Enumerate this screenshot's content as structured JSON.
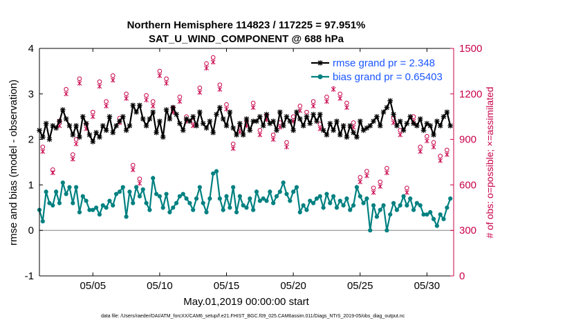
{
  "chart_data": {
    "type": "line",
    "title": [
      "Northern Hemisphere 114823 / 117225 = 97.951%",
      "SAT_U_WIND_COMPONENT @ 688 hPa"
    ],
    "xlabel": "May.01,2019 00:00:00 start",
    "ylabel": "rmse and bias (model - observation)",
    "y2label": "# of obs: o=possible; ×=assimilated",
    "xlim": [
      1,
      32
    ],
    "ylim": [
      -1,
      4
    ],
    "y2lim": [
      0,
      1500
    ],
    "xticks": [
      5,
      10,
      15,
      20,
      25,
      30
    ],
    "xtick_labels": [
      "05/05",
      "05/10",
      "05/15",
      "05/20",
      "05/25",
      "05/30"
    ],
    "yticks": [
      -1,
      0,
      1,
      2,
      3,
      4
    ],
    "ytick_labels": [
      "-1",
      "0",
      "1",
      "2",
      "3",
      "4"
    ],
    "y2ticks": [
      0,
      300,
      600,
      900,
      1200,
      1500
    ],
    "y2tick_labels": [
      "0",
      "300",
      "600",
      "900",
      "1200",
      "1500"
    ],
    "zero_line": 0,
    "legend": [
      "rmse grand pr = 2.348",
      "bias grand pr = 0.65403"
    ],
    "legend_position": "top-right",
    "colors": {
      "rmse": "#000000",
      "bias": "#008080",
      "obs": "#c8004a",
      "zero": "#aaaaaa",
      "legend_text": "#1a56ff"
    },
    "footer": "data file: /Users/raeder/DAI/ATM_forcXX/CAM6_setup/f.e21.FHIST_BGC.f09_025.CAM6assim.011/Diags_NTrS_2019-05/obs_diag_output.nc",
    "series": [
      {
        "name": "rmse",
        "x": [
          1.0,
          1.25,
          1.5,
          1.75,
          2.0,
          2.25,
          2.5,
          2.75,
          3.0,
          3.25,
          3.5,
          3.75,
          4.0,
          4.25,
          4.5,
          4.75,
          5.0,
          5.25,
          5.5,
          5.75,
          6.0,
          6.25,
          6.5,
          6.75,
          7.0,
          7.25,
          7.5,
          7.75,
          8.0,
          8.25,
          8.5,
          8.75,
          9.0,
          9.25,
          9.5,
          9.75,
          10.0,
          10.25,
          10.5,
          10.75,
          11.0,
          11.25,
          11.5,
          11.75,
          12.0,
          12.25,
          12.5,
          12.75,
          13.0,
          13.25,
          13.5,
          13.75,
          14.0,
          14.25,
          14.5,
          14.75,
          15.0,
          15.25,
          15.5,
          15.75,
          16.0,
          16.25,
          16.5,
          16.75,
          17.0,
          17.25,
          17.5,
          17.75,
          18.0,
          18.25,
          18.5,
          18.75,
          19.0,
          19.25,
          19.5,
          19.75,
          20.0,
          20.25,
          20.5,
          20.75,
          21.0,
          21.25,
          21.5,
          21.75,
          22.0,
          22.25,
          22.5,
          22.75,
          23.0,
          23.25,
          23.5,
          23.75,
          24.0,
          24.25,
          24.5,
          24.75,
          25.0,
          25.25,
          25.5,
          25.75,
          26.0,
          26.25,
          26.5,
          26.75,
          27.0,
          27.25,
          27.5,
          27.75,
          28.0,
          28.25,
          28.5,
          28.75,
          29.0,
          29.25,
          29.5,
          29.75,
          30.0,
          30.25,
          30.5,
          30.75,
          31.0,
          31.25,
          31.5,
          31.75
        ],
        "values": [
          2.2,
          2.05,
          2.35,
          2.0,
          2.3,
          2.25,
          2.4,
          2.65,
          2.45,
          2.3,
          2.1,
          2.3,
          2.05,
          2.5,
          2.35,
          2.1,
          1.95,
          2.15,
          2.05,
          2.3,
          2.2,
          2.5,
          2.15,
          2.3,
          2.4,
          2.5,
          2.2,
          2.3,
          2.75,
          2.6,
          2.75,
          2.45,
          2.3,
          2.45,
          2.6,
          2.15,
          2.4,
          2.05,
          2.65,
          2.45,
          2.7,
          2.55,
          2.35,
          2.2,
          2.45,
          2.4,
          2.5,
          2.3,
          2.6,
          2.35,
          2.25,
          2.4,
          2.15,
          2.55,
          2.7,
          2.45,
          2.3,
          2.6,
          2.25,
          2.1,
          2.35,
          2.1,
          2.45,
          2.2,
          2.4,
          2.4,
          2.5,
          2.3,
          2.55,
          2.35,
          2.4,
          2.2,
          2.6,
          2.3,
          2.5,
          2.4,
          2.2,
          2.6,
          2.45,
          2.3,
          2.5,
          2.35,
          2.55,
          2.4,
          2.55,
          2.2,
          2.1,
          2.35,
          2.2,
          2.4,
          2.1,
          2.3,
          2.05,
          2.3,
          2.15,
          2.05,
          2.4,
          2.2,
          2.25,
          2.3,
          2.4,
          2.5,
          2.3,
          2.6,
          2.7,
          2.85,
          2.55,
          2.3,
          2.4,
          2.2,
          2.35,
          2.5,
          2.35,
          2.3,
          2.45,
          2.2,
          2.35,
          2.3,
          2.1,
          2.4,
          2.3,
          2.5,
          2.6,
          2.3
        ]
      },
      {
        "name": "bias",
        "x": [
          1.0,
          1.25,
          1.5,
          1.75,
          2.0,
          2.25,
          2.5,
          2.75,
          3.0,
          3.25,
          3.5,
          3.75,
          4.0,
          4.25,
          4.5,
          4.75,
          5.0,
          5.25,
          5.5,
          5.75,
          6.0,
          6.25,
          6.5,
          6.75,
          7.0,
          7.25,
          7.5,
          7.75,
          8.0,
          8.25,
          8.5,
          8.75,
          9.0,
          9.25,
          9.5,
          9.75,
          10.0,
          10.25,
          10.5,
          10.75,
          11.0,
          11.25,
          11.5,
          11.75,
          12.0,
          12.25,
          12.5,
          12.75,
          13.0,
          13.25,
          13.5,
          13.75,
          14.0,
          14.25,
          14.5,
          14.75,
          15.0,
          15.25,
          15.5,
          15.75,
          16.0,
          16.25,
          16.5,
          16.75,
          17.0,
          17.25,
          17.5,
          17.75,
          18.0,
          18.25,
          18.5,
          18.75,
          19.0,
          19.25,
          19.5,
          19.75,
          20.0,
          20.25,
          20.5,
          20.75,
          21.0,
          21.25,
          21.5,
          21.75,
          22.0,
          22.25,
          22.5,
          22.75,
          23.0,
          23.25,
          23.5,
          23.75,
          24.0,
          24.25,
          24.5,
          24.75,
          25.0,
          25.25,
          25.5,
          25.75,
          26.0,
          26.25,
          26.5,
          26.75,
          27.0,
          27.25,
          27.5,
          27.75,
          28.0,
          28.25,
          28.5,
          28.75,
          29.0,
          29.25,
          29.5,
          29.75,
          30.0,
          30.25,
          30.5,
          30.75,
          31.0,
          31.25,
          31.5,
          31.75
        ],
        "values": [
          0.45,
          0.2,
          0.85,
          0.6,
          0.55,
          0.85,
          0.6,
          1.05,
          0.8,
          0.95,
          0.6,
          0.95,
          0.4,
          0.75,
          0.65,
          0.45,
          0.45,
          0.5,
          0.35,
          0.55,
          0.5,
          0.65,
          0.55,
          0.8,
          0.85,
          0.95,
          0.3,
          0.85,
          0.6,
          0.95,
          0.75,
          0.9,
          0.6,
          0.45,
          1.15,
          0.8,
          0.75,
          0.5,
          0.8,
          0.4,
          0.5,
          0.6,
          0.75,
          0.8,
          0.7,
          0.6,
          0.45,
          0.7,
          0.95,
          0.6,
          0.4,
          0.7,
          1.25,
          1.3,
          0.7,
          0.45,
          0.75,
          0.5,
          0.95,
          0.4,
          0.75,
          0.55,
          0.5,
          0.7,
          0.45,
          0.85,
          0.65,
          0.7,
          0.65,
          0.85,
          0.6,
          0.75,
          0.85,
          1.05,
          0.8,
          0.65,
          0.85,
          0.95,
          0.4,
          0.55,
          0.45,
          0.65,
          0.6,
          0.7,
          0.75,
          0.5,
          0.8,
          0.6,
          0.75,
          0.5,
          0.65,
          0.55,
          0.7,
          0.45,
          0.55,
          0.95,
          0.75,
          0.6,
          0.7,
          0.0,
          0.55,
          0.3,
          0.45,
          0.55,
          0.0,
          0.35,
          0.6,
          0.45,
          0.55,
          0.75,
          0.55,
          0.7,
          0.45,
          0.6,
          0.55,
          0.35,
          0.35,
          0.4,
          0.25,
          0.1,
          0.35,
          0.25,
          0.5,
          0.7
        ]
      },
      {
        "name": "obs_possible",
        "marker": "circle",
        "x": [
          1.25,
          2.0,
          2.5,
          3.0,
          3.5,
          3.75,
          4.0,
          4.5,
          5.0,
          5.5,
          6.0,
          6.5,
          7.0,
          7.5,
          8.0,
          8.5,
          9.0,
          9.5,
          10.0,
          10.5,
          11.0,
          11.5,
          12.0,
          12.5,
          13.0,
          13.5,
          14.0,
          14.5,
          15.0,
          15.5,
          16.0,
          16.5,
          17.0,
          17.5,
          18.0,
          18.5,
          19.0,
          19.5,
          20.0,
          20.5,
          21.0,
          21.5,
          22.0,
          22.5,
          23.0,
          23.5,
          24.0,
          24.5,
          25.0,
          25.5,
          26.0,
          26.5,
          27.0,
          27.5,
          28.0,
          28.5,
          29.0,
          29.5,
          30.0,
          30.5,
          31.0,
          31.5
        ],
        "values": [
          850,
          700,
          1020,
          1230,
          800,
          900,
          1300,
          1000,
          1080,
          1280,
          1150,
          1320,
          1040,
          1200,
          730,
          640,
          1190,
          1150,
          1350,
          1300,
          1110,
          1180,
          1050,
          1020,
          1240,
          1400,
          1440,
          1260,
          1130,
          870,
          980,
          1020,
          1140,
          960,
          1060,
          930,
          1010,
          880,
          1050,
          1120,
          1080,
          1150,
          1000,
          1180,
          1260,
          1200,
          1140,
          1010,
          650,
          690,
          580,
          620,
          710,
          1040,
          960,
          580,
          1050,
          850,
          920,
          880,
          790,
          830
        ]
      },
      {
        "name": "obs_assimilated",
        "marker": "cross",
        "x": [
          1.25,
          2.0,
          2.5,
          3.0,
          3.5,
          3.75,
          4.0,
          4.5,
          5.0,
          5.5,
          6.0,
          6.5,
          7.0,
          7.5,
          8.0,
          8.5,
          9.0,
          9.5,
          10.0,
          10.5,
          11.0,
          11.5,
          12.0,
          12.5,
          13.0,
          13.5,
          14.0,
          14.5,
          15.0,
          15.5,
          16.0,
          16.5,
          17.0,
          17.5,
          18.0,
          18.5,
          19.0,
          19.5,
          20.0,
          20.5,
          21.0,
          21.5,
          22.0,
          22.5,
          23.0,
          23.5,
          24.0,
          24.5,
          25.0,
          25.5,
          26.0,
          26.5,
          27.0,
          27.5,
          28.0,
          28.5,
          29.0,
          29.5,
          30.0,
          30.5,
          31.0,
          31.5
        ],
        "values": [
          820,
          680,
          990,
          1200,
          770,
          870,
          1270,
          970,
          1050,
          1250,
          1120,
          1290,
          1010,
          1170,
          700,
          610,
          1160,
          1120,
          1320,
          1270,
          1080,
          1150,
          1020,
          990,
          1210,
          1370,
          1410,
          1230,
          1100,
          840,
          950,
          990,
          1110,
          930,
          1030,
          900,
          980,
          850,
          1020,
          1090,
          1050,
          1120,
          970,
          1150,
          1230,
          1170,
          1110,
          980,
          620,
          660,
          550,
          590,
          680,
          1010,
          930,
          550,
          1020,
          820,
          890,
          850,
          760,
          800
        ]
      }
    ]
  }
}
